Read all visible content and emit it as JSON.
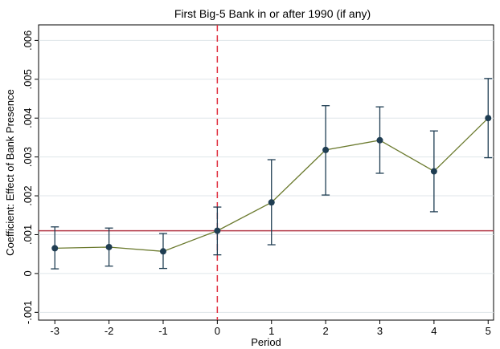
{
  "chart_data": {
    "type": "line",
    "title": "First Big-5 Bank in or after 1990 (if any)",
    "xlabel": "Period",
    "ylabel": "Coefficient: Effect of Bank Presence",
    "xlim": [
      -3.3,
      5.1
    ],
    "ylim": [
      -0.0012,
      0.0064
    ],
    "x_ticks": [
      -3,
      -2,
      -1,
      0,
      1,
      2,
      3,
      4,
      5
    ],
    "x_tick_labels": [
      "-3",
      "-2",
      "-1",
      "0",
      "1",
      "2",
      "3",
      "4",
      "5"
    ],
    "y_ticks": [
      -0.001,
      0,
      0.001,
      0.002,
      0.003,
      0.004,
      0.005,
      0.006
    ],
    "y_tick_labels": [
      "-.001",
      "0",
      ".001",
      ".002",
      ".003",
      ".004",
      ".005",
      ".006"
    ],
    "grid": true,
    "series": [
      {
        "x": [
          -3,
          -2,
          -1,
          0,
          1,
          2,
          3,
          4,
          5
        ],
        "values": [
          0.00065,
          0.00068,
          0.00057,
          0.0011,
          0.00183,
          0.00318,
          0.00343,
          0.00263,
          0.004
        ],
        "ci_low": [
          0.00012,
          0.00019,
          0.00013,
          0.00048,
          0.00074,
          0.00202,
          0.00258,
          0.00159,
          0.00298
        ],
        "ci_high": [
          0.0012,
          0.00117,
          0.00103,
          0.00171,
          0.00293,
          0.00432,
          0.00429,
          0.00367,
          0.00502
        ]
      }
    ],
    "reference_lines": {
      "vertical_x": 0,
      "horizontal_y": 0.0011
    },
    "colors": {
      "line": "#6b7a2e",
      "marker": "#1f3d52",
      "error_bar": "#1f3d52",
      "vertical_ref": "#e03040",
      "horizontal_ref": "#b23a48",
      "grid": "#dfe6ea",
      "axis": "#000000"
    }
  }
}
